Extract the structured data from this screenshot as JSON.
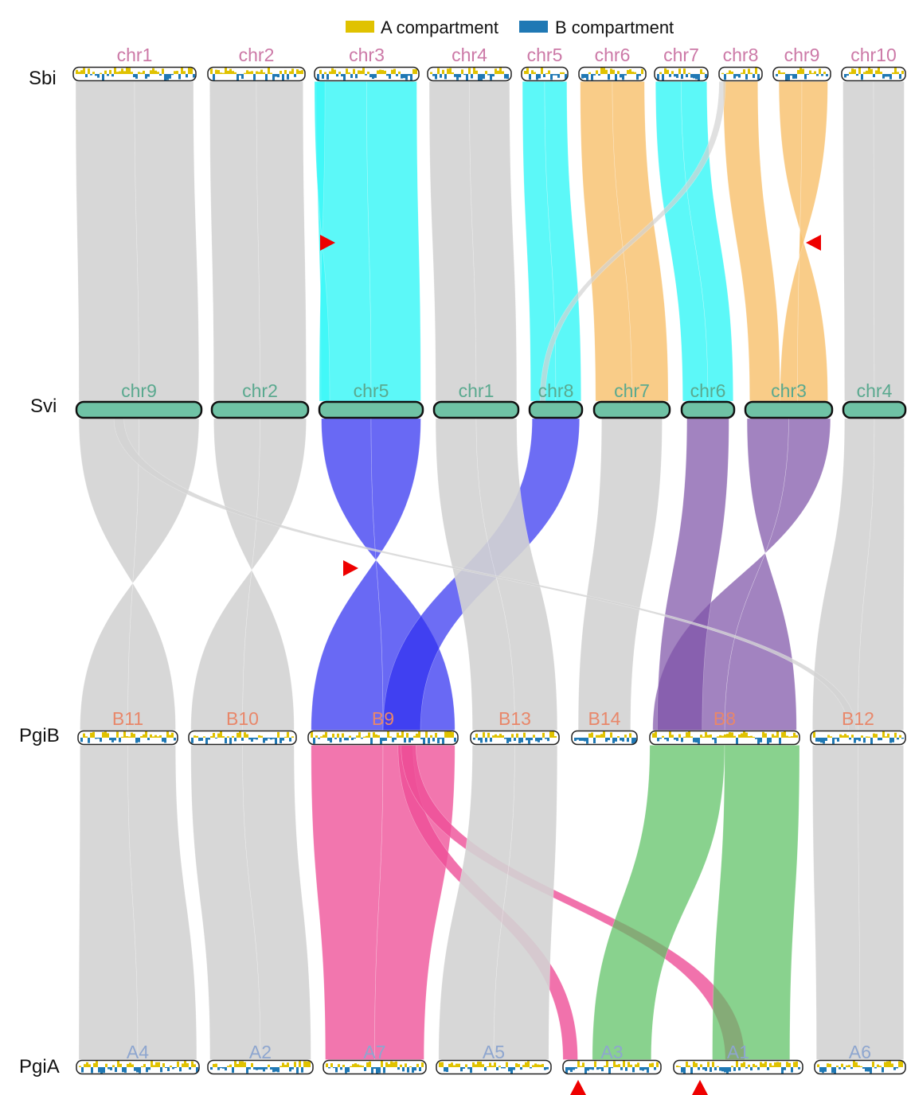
{
  "legend": {
    "a_label": "A compartment",
    "b_label": "B compartment",
    "a_color": "#e0c200",
    "b_color": "#1f78b4"
  },
  "rows": [
    {
      "name": "Sbi",
      "label_color": "#cc79a7",
      "kind": "compartment",
      "chromosomes": [
        "chr1",
        "chr2",
        "chr3",
        "chr4",
        "chr5",
        "chr6",
        "chr7",
        "chr8",
        "chr9",
        "chr10"
      ]
    },
    {
      "name": "Svi",
      "label_color": "#5aa98f",
      "kind": "plain",
      "fill": "#6fc2a5",
      "chromosomes": [
        "chr9",
        "chr2",
        "chr5",
        "chr1",
        "chr8",
        "chr7",
        "chr6",
        "chr3",
        "chr4"
      ]
    },
    {
      "name": "PgiB",
      "label_color": "#e8876a",
      "kind": "compartment",
      "chromosomes": [
        "B11",
        "B10",
        "B9",
        "B13",
        "B14",
        "B8",
        "B12"
      ]
    },
    {
      "name": "PgiA",
      "label_color": "#8ea6cf",
      "kind": "compartment",
      "chromosomes": [
        "A4",
        "A2",
        "A7",
        "A5",
        "A3",
        "A1",
        "A6"
      ]
    }
  ],
  "colors": {
    "gray": "#d3d3d3",
    "cyan": "#3ff7f7",
    "orange": "#f8bf6a",
    "blue": "#2f2ff0",
    "purple": "#7e53a8",
    "pink": "#ee4f97",
    "green": "#5cc163",
    "marker": "#ee0000"
  },
  "markers": [
    {
      "at": "Sbi-Svi chr3/chr5 inversion",
      "direction": "right"
    },
    {
      "at": "Sbi-Svi chr9/chr3 inversion",
      "direction": "left"
    },
    {
      "at": "Svi-PgiB chr5/B9 inversion",
      "direction": "right"
    },
    {
      "at": "PgiA A3",
      "direction": "up"
    },
    {
      "at": "PgiA A1",
      "direction": "up"
    }
  ]
}
